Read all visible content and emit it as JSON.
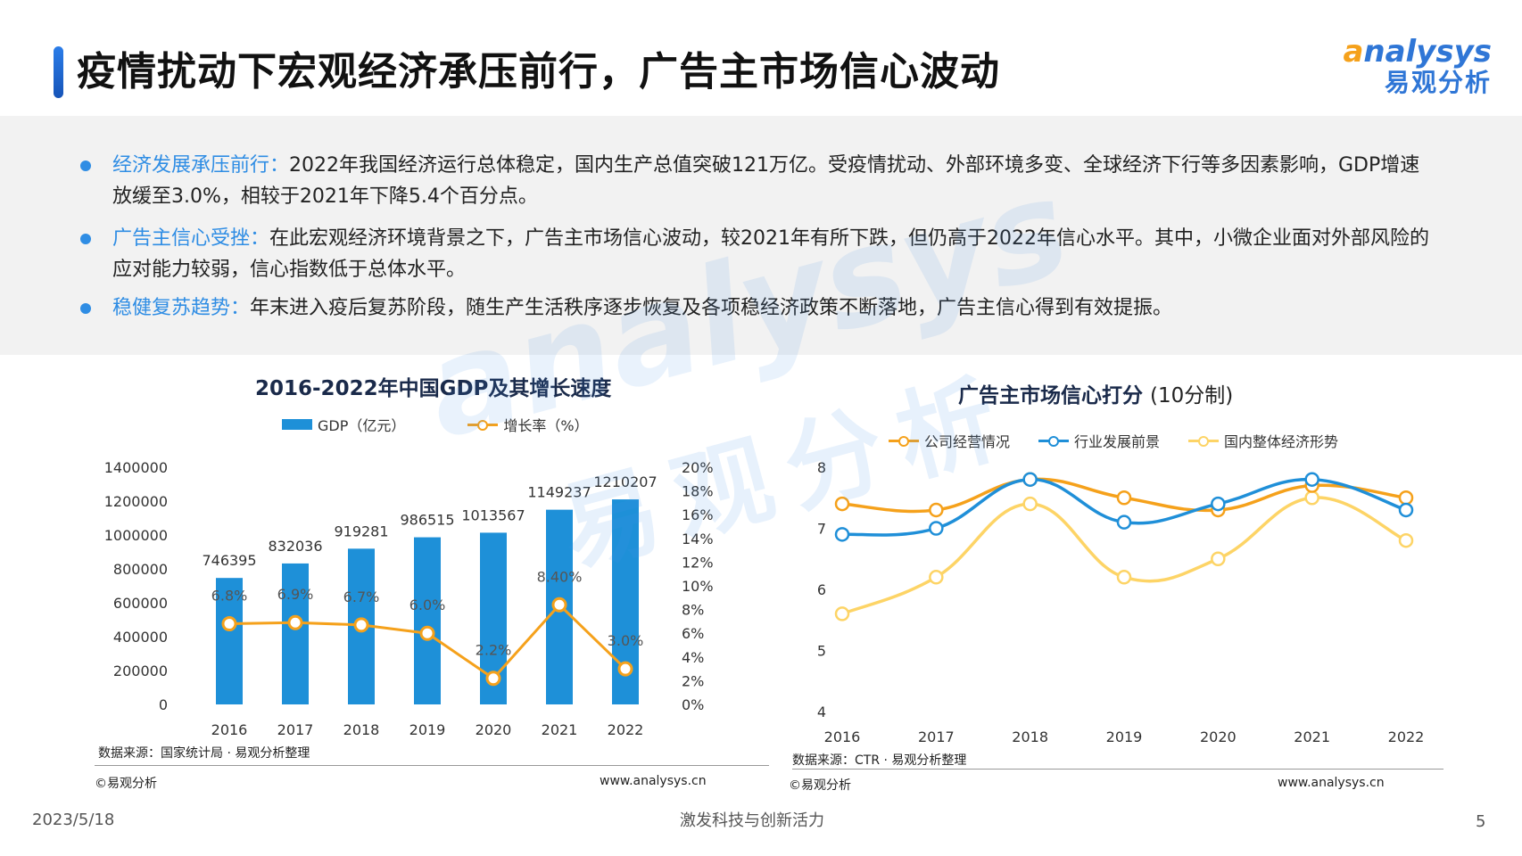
{
  "page_title": "疫情扰动下宏观经济承压前行，广告主市场信心波动",
  "logo": {
    "en_mark": "a",
    "en_rest": "nalysys",
    "cn": "易观分析"
  },
  "bullets": [
    {
      "head": "经济发展承压前行：",
      "body": "2022年我国经济运行总体稳定，国内生产总值突破121万亿。受疫情扰动、外部环境多变、全球经济下行等多因素影响，GDP增速放缓至3.0%，相较于2021年下降5.4个百分点。"
    },
    {
      "head": "广告主信心受挫：",
      "body": "在此宏观经济环境背景之下，广告主市场信心波动，较2021年有所下跌，但仍高于2022年信心水平。其中，小微企业面对外部风险的应对能力较弱，信心指数低于总体水平。"
    },
    {
      "head": "稳健复苏趋势：",
      "body": "年末进入疫后复苏阶段，随生产生活秩序逐步恢复及各项稳经济政策不断落地，广告主信心得到有效提振。"
    }
  ],
  "watermark": {
    "en": "analysys",
    "cn": "易观分析"
  },
  "colors": {
    "bar": "#1e90d8",
    "growth": "#f5a11b",
    "company": "#f5a11b",
    "industry": "#1f8fd8",
    "economy": "#fdd466",
    "accent": "#2f8de4"
  },
  "chart_data": [
    {
      "type": "bar",
      "title": "2016-2022年中国GDP及其增长速度",
      "categories": [
        "2016",
        "2017",
        "2018",
        "2019",
        "2020",
        "2021",
        "2022"
      ],
      "series": [
        {
          "name": "GDP（亿元）",
          "type": "bar",
          "axis": "left",
          "values": [
            746395,
            832036,
            919281,
            986515,
            1013567,
            1149237,
            1210207
          ],
          "labels": [
            "746395",
            "832036",
            "919281",
            "986515",
            "1013567",
            "1149237",
            "1210207"
          ]
        },
        {
          "name": "增长率（%）",
          "type": "line",
          "axis": "right",
          "values": [
            6.8,
            6.9,
            6.7,
            6.0,
            2.2,
            8.4,
            3.0
          ],
          "labels": [
            "6.8%",
            "6.9%",
            "6.7%",
            "6.0%",
            "2.2%",
            "8.40%",
            "3.0%"
          ]
        }
      ],
      "y_left": {
        "ylim": [
          0,
          1400000
        ],
        "ticks": [
          "0",
          "200000",
          "400000",
          "600000",
          "800000",
          "1000000",
          "1200000",
          "1400000"
        ]
      },
      "y_right": {
        "ylim": [
          0,
          20
        ],
        "ticks": [
          "0%",
          "2%",
          "4%",
          "6%",
          "8%",
          "10%",
          "12%",
          "14%",
          "16%",
          "18%",
          "20%"
        ]
      },
      "source": "数据来源：国家统计局 · 易观分析整理",
      "copyright": "©易观分析",
      "url": "www.analysys.cn",
      "legend": "top",
      "grid": false
    },
    {
      "type": "line",
      "title": "广告主市场信心打分",
      "title_suffix": "(10分制)",
      "categories": [
        "2016",
        "2017",
        "2018",
        "2019",
        "2020",
        "2021",
        "2022"
      ],
      "series": [
        {
          "name": "公司经营情况",
          "values": [
            7.4,
            7.3,
            7.8,
            7.5,
            7.3,
            7.7,
            7.5
          ]
        },
        {
          "name": "行业发展前景",
          "values": [
            6.9,
            7.0,
            7.8,
            7.1,
            7.4,
            7.8,
            7.3
          ]
        },
        {
          "name": "国内整体经济形势",
          "values": [
            5.6,
            6.2,
            7.4,
            6.2,
            6.5,
            7.5,
            6.8
          ]
        }
      ],
      "ylim": [
        4,
        8
      ],
      "y_ticks": [
        "4",
        "5",
        "6",
        "7",
        "8"
      ],
      "source": "数据来源：CTR · 易观分析整理",
      "copyright": "©易观分析",
      "url": "www.analysys.cn",
      "legend": "top",
      "grid": false
    }
  ],
  "footer": {
    "date": "2023/5/18",
    "slogan": "激发科技与创新活力",
    "page": "5"
  }
}
